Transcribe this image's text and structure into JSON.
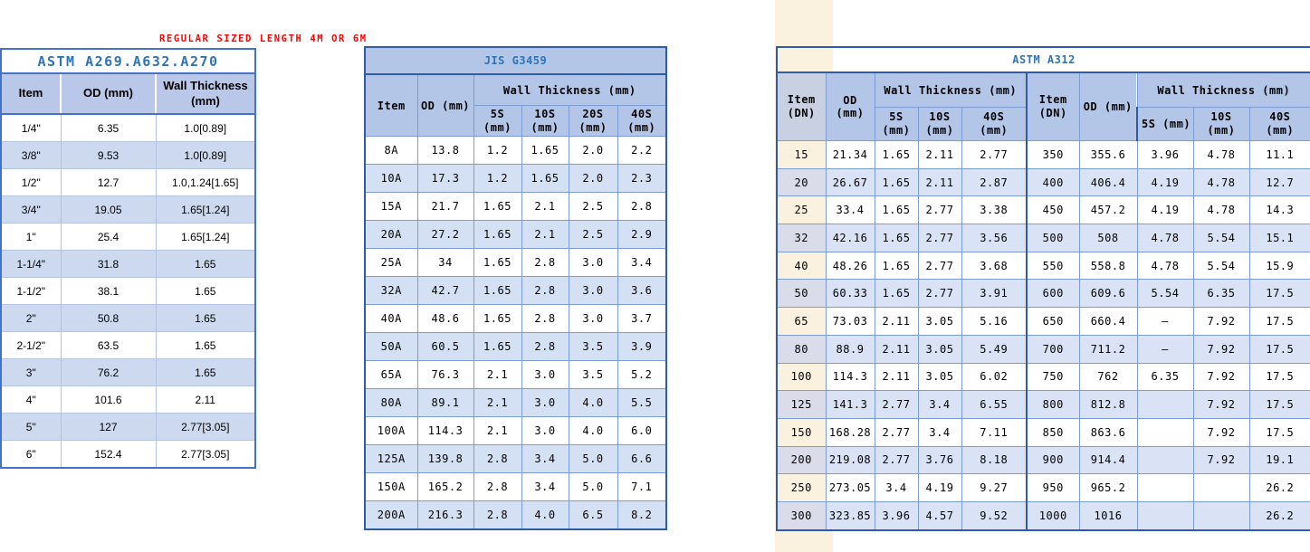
{
  "note": {
    "text": "REGULAR SIZED LENGTH 4M OR 6M"
  },
  "colors": {
    "outer_border": "#2f5ba7",
    "grid_border": "#7c9cd4",
    "header_bg": "#b4c6e7",
    "left_header_bg": "#b9c7e8",
    "banded_left": "#cdd9ef",
    "banded_mid": "#d4e0f3",
    "banded_right": "#dae3f5",
    "first_col_banded": "#dbdce9",
    "first_col_header": "#c9d0e2",
    "cream_band": "#faf1de",
    "title_text": "#2e74b5",
    "note_text": "#ff0000"
  },
  "left_table": {
    "title": "ASTM A269.A632.A270",
    "columns": [
      "Item",
      "OD  (mm)",
      "Wall Thickness\n(mm)"
    ],
    "rows": [
      [
        "1/4\"",
        "6.35",
        "1.0[0.89]"
      ],
      [
        "3/8\"",
        "9.53",
        "1.0[0.89]"
      ],
      [
        "1/2\"",
        "12.7",
        "1.0,1.24[1.65]"
      ],
      [
        "3/4\"",
        "19.05",
        "1.65[1.24]"
      ],
      [
        "1\"",
        "25.4",
        "1.65[1.24]"
      ],
      [
        "1-1/4\"",
        "31.8",
        "1.65"
      ],
      [
        "1-1/2\"",
        "38.1",
        "1.65"
      ],
      [
        "2\"",
        "50.8",
        "1.65"
      ],
      [
        "2-1/2\"",
        "63.5",
        "1.65"
      ],
      [
        "3\"",
        "76.2",
        "1.65"
      ],
      [
        "4\"",
        "101.6",
        "2.11"
      ],
      [
        "5\"",
        "127",
        "2.77[3.05]"
      ],
      [
        "6\"",
        "152.4",
        "2.77[3.05]"
      ]
    ]
  },
  "jis_table": {
    "title": "JIS G3459",
    "header": {
      "item": "Item",
      "od": "OD (mm)",
      "wall": "Wall Thickness (mm)",
      "s5": "5S\n(mm)",
      "s10": "10S\n(mm)",
      "s20": "20S\n(mm)",
      "s40": "40S\n(mm)"
    },
    "rows": [
      [
        "8A",
        "13.8",
        "1.2",
        "1.65",
        "2.0",
        "2.2"
      ],
      [
        "10A",
        "17.3",
        "1.2",
        "1.65",
        "2.0",
        "2.3"
      ],
      [
        "15A",
        "21.7",
        "1.65",
        "2.1",
        "2.5",
        "2.8"
      ],
      [
        "20A",
        "27.2",
        "1.65",
        "2.1",
        "2.5",
        "2.9"
      ],
      [
        "25A",
        "34",
        "1.65",
        "2.8",
        "3.0",
        "3.4"
      ],
      [
        "32A",
        "42.7",
        "1.65",
        "2.8",
        "3.0",
        "3.6"
      ],
      [
        "40A",
        "48.6",
        "1.65",
        "2.8",
        "3.0",
        "3.7"
      ],
      [
        "50A",
        "60.5",
        "1.65",
        "2.8",
        "3.5",
        "3.9"
      ],
      [
        "65A",
        "76.3",
        "2.1",
        "3.0",
        "3.5",
        "5.2"
      ],
      [
        "80A",
        "89.1",
        "2.1",
        "3.0",
        "4.0",
        "5.5"
      ],
      [
        "100A",
        "114.3",
        "2.1",
        "3.0",
        "4.0",
        "6.0"
      ],
      [
        "125A",
        "139.8",
        "2.8",
        "3.4",
        "5.0",
        "6.6"
      ],
      [
        "150A",
        "165.2",
        "2.8",
        "3.4",
        "5.0",
        "7.1"
      ],
      [
        "200A",
        "216.3",
        "2.8",
        "4.0",
        "6.5",
        "8.2"
      ]
    ]
  },
  "a312_table": {
    "title": "ASTM A312",
    "header": {
      "item": "Item\n(DN)",
      "od": "OD (mm)",
      "wall": "Wall Thickness (mm)",
      "s5": "5S\n(mm)",
      "s10": "10S\n(mm)",
      "s40": "40S\n(mm)",
      "s5_right": "5S (mm)"
    },
    "rows": [
      [
        "15",
        "21.34",
        "1.65",
        "2.11",
        "2.77",
        "350",
        "355.6",
        "3.96",
        "4.78",
        "11.1"
      ],
      [
        "20",
        "26.67",
        "1.65",
        "2.11",
        "2.87",
        "400",
        "406.4",
        "4.19",
        "4.78",
        "12.7"
      ],
      [
        "25",
        "33.4",
        "1.65",
        "2.77",
        "3.38",
        "450",
        "457.2",
        "4.19",
        "4.78",
        "14.3"
      ],
      [
        "32",
        "42.16",
        "1.65",
        "2.77",
        "3.56",
        "500",
        "508",
        "4.78",
        "5.54",
        "15.1"
      ],
      [
        "40",
        "48.26",
        "1.65",
        "2.77",
        "3.68",
        "550",
        "558.8",
        "4.78",
        "5.54",
        "15.9"
      ],
      [
        "50",
        "60.33",
        "1.65",
        "2.77",
        "3.91",
        "600",
        "609.6",
        "5.54",
        "6.35",
        "17.5"
      ],
      [
        "65",
        "73.03",
        "2.11",
        "3.05",
        "5.16",
        "650",
        "660.4",
        "–",
        "7.92",
        "17.5"
      ],
      [
        "80",
        "88.9",
        "2.11",
        "3.05",
        "5.49",
        "700",
        "711.2",
        "–",
        "7.92",
        "17.5"
      ],
      [
        "100",
        "114.3",
        "2.11",
        "3.05",
        "6.02",
        "750",
        "762",
        "6.35",
        "7.92",
        "17.5"
      ],
      [
        "125",
        "141.3",
        "2.77",
        "3.4",
        "6.55",
        "800",
        "812.8",
        "",
        "7.92",
        "17.5"
      ],
      [
        "150",
        "168.28",
        "2.77",
        "3.4",
        "7.11",
        "850",
        "863.6",
        "",
        "7.92",
        "17.5"
      ],
      [
        "200",
        "219.08",
        "2.77",
        "3.76",
        "8.18",
        "900",
        "914.4",
        "",
        "7.92",
        "19.1"
      ],
      [
        "250",
        "273.05",
        "3.4",
        "4.19",
        "9.27",
        "950",
        "965.2",
        "",
        "",
        "26.2"
      ],
      [
        "300",
        "323.85",
        "3.96",
        "4.57",
        "9.52",
        "1000",
        "1016",
        "",
        "",
        "26.2"
      ]
    ]
  }
}
